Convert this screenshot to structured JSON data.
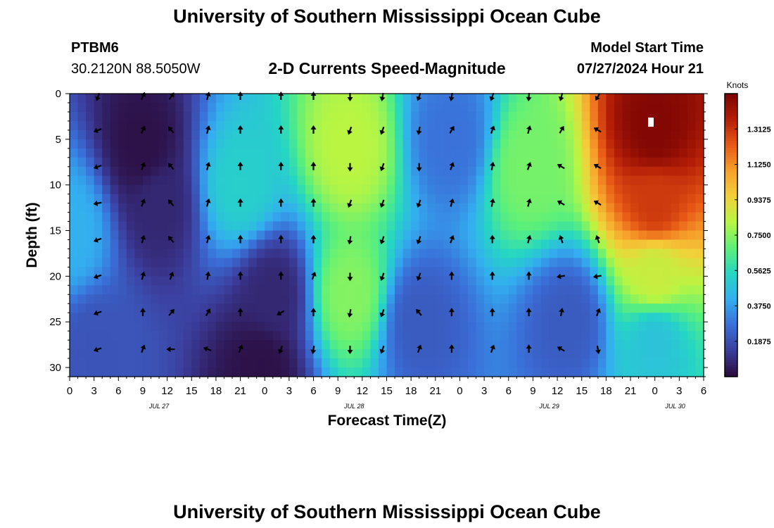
{
  "header": {
    "title": "University of Southern Mississippi Ocean Cube",
    "station_id": "PTBM6",
    "station_coords": "30.2120N  88.5050W",
    "plot_title": "2-D Currents Speed-Magnitude",
    "model_start_label": "Model Start Time",
    "model_start_value": "07/27/2024 Hour 21"
  },
  "footer": {
    "title": "University of Southern Mississippi Ocean Cube"
  },
  "colors": {
    "scale": [
      "#2a0a3a",
      "#3b3d9b",
      "#3a6fd8",
      "#33aef0",
      "#25d6c3",
      "#5cf07a",
      "#b9f542",
      "#f2d13a",
      "#f7a02b",
      "#e85a16",
      "#b41e07",
      "#7a0403"
    ]
  },
  "chart_data": {
    "type": "heatmap",
    "title": "2-D Currents Speed-Magnitude",
    "xlabel": "Forecast Time(Z)",
    "ylabel": "Depth (ft)",
    "ylim": [
      0,
      31
    ],
    "y_ticks": [
      0,
      5,
      10,
      15,
      20,
      25,
      30
    ],
    "x_range_hours": [
      0,
      78
    ],
    "x_tick_labels": [
      "0",
      "3",
      "6",
      "9",
      "12",
      "15",
      "18",
      "21",
      "0",
      "3",
      "6",
      "9",
      "12",
      "15",
      "18",
      "21",
      "0",
      "3",
      "6",
      "9",
      "12",
      "15",
      "18",
      "21",
      "0",
      "3",
      "6"
    ],
    "date_labels": [
      {
        "label": "JUL 27",
        "hour": 11
      },
      {
        "label": "JUL 28",
        "hour": 35
      },
      {
        "label": "JUL 29",
        "hour": 59
      },
      {
        "label": "JUL 30",
        "hour": 74.5
      }
    ],
    "colorbar": {
      "label": "Knots",
      "range": [
        0,
        1.5
      ],
      "ticks": [
        "1.3125",
        "1.1250",
        "0.9375",
        "0.7500",
        "0.5625",
        "0.3750",
        "0.1875"
      ],
      "tick_values": [
        1.3125,
        1.125,
        0.9375,
        0.75,
        0.5625,
        0.375,
        0.1875
      ]
    },
    "speed_features": [
      {
        "hour": 0,
        "depth": 15,
        "value": 0.42
      },
      {
        "hour": 9,
        "depth": 6,
        "value": 0.02
      },
      {
        "hour": 11,
        "depth": 12,
        "value": 0.08
      },
      {
        "hour": 3.5,
        "depth": 28,
        "value": 0.2
      },
      {
        "hour": 21,
        "depth": 10,
        "value": 0.52
      },
      {
        "hour": 23.5,
        "depth": 30,
        "value": 0.02
      },
      {
        "hour": 25,
        "depth": 22,
        "value": 0.08
      },
      {
        "hour": 34.5,
        "depth": 6,
        "value": 0.82
      },
      {
        "hour": 34.5,
        "depth": 22,
        "value": 0.74
      },
      {
        "hour": 43,
        "depth": 25,
        "value": 0.22
      },
      {
        "hour": 47,
        "depth": 5,
        "value": 0.28
      },
      {
        "hour": 56.5,
        "depth": 8,
        "value": 0.72
      },
      {
        "hour": 61.5,
        "depth": 25,
        "value": 0.22
      },
      {
        "hour": 72,
        "depth": 4,
        "value": 1.48
      },
      {
        "hour": 72,
        "depth": 12,
        "value": 1.3
      },
      {
        "hour": 72,
        "depth": 20,
        "value": 0.85
      },
      {
        "hour": 72,
        "depth": 27,
        "value": 0.48
      }
    ],
    "vector_hours": [
      3.5,
      9,
      12.5,
      17,
      21,
      26,
      30,
      34.5,
      38.5,
      43,
      47,
      52,
      56.5,
      60.5,
      65
    ],
    "vector_depths": [
      0,
      4,
      8,
      12,
      16,
      20,
      24,
      28
    ],
    "vector_directions_deg": [
      [
        200,
        25,
        35,
        15,
        0,
        0,
        0,
        180,
        190,
        200,
        190,
        200,
        185,
        195,
        210
      ],
      [
        250,
        25,
        320,
        15,
        0,
        0,
        0,
        200,
        200,
        190,
        30,
        20,
        15,
        30,
        300
      ],
      [
        250,
        20,
        320,
        15,
        0,
        0,
        0,
        180,
        200,
        180,
        20,
        10,
        20,
        300,
        300
      ],
      [
        260,
        20,
        320,
        15,
        0,
        0,
        0,
        200,
        200,
        200,
        15,
        10,
        15,
        300,
        300
      ],
      [
        250,
        15,
        320,
        15,
        0,
        0,
        0,
        190,
        200,
        200,
        20,
        0,
        15,
        340,
        340
      ],
      [
        250,
        15,
        20,
        10,
        0,
        0,
        20,
        180,
        200,
        200,
        0,
        0,
        0,
        260,
        260
      ],
      [
        250,
        0,
        40,
        30,
        0,
        240,
        0,
        190,
        200,
        320,
        0,
        0,
        0,
        10,
        20
      ],
      [
        250,
        20,
        270,
        290,
        20,
        200,
        190,
        180,
        200,
        20,
        0,
        20,
        0,
        300,
        170
      ]
    ]
  }
}
